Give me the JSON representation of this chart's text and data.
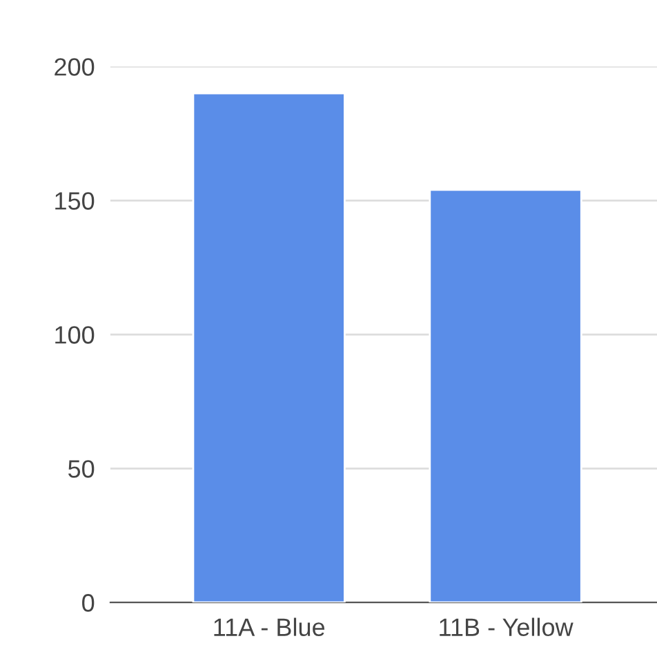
{
  "chart_data": {
    "type": "bar",
    "categories": [
      "11A - Blue",
      "11B - Yellow"
    ],
    "values": [
      190,
      154
    ],
    "color": "#5a8de8",
    "ylim": [
      0,
      200
    ],
    "yticks": [
      0,
      50,
      100,
      150,
      200
    ],
    "grid": "y"
  }
}
